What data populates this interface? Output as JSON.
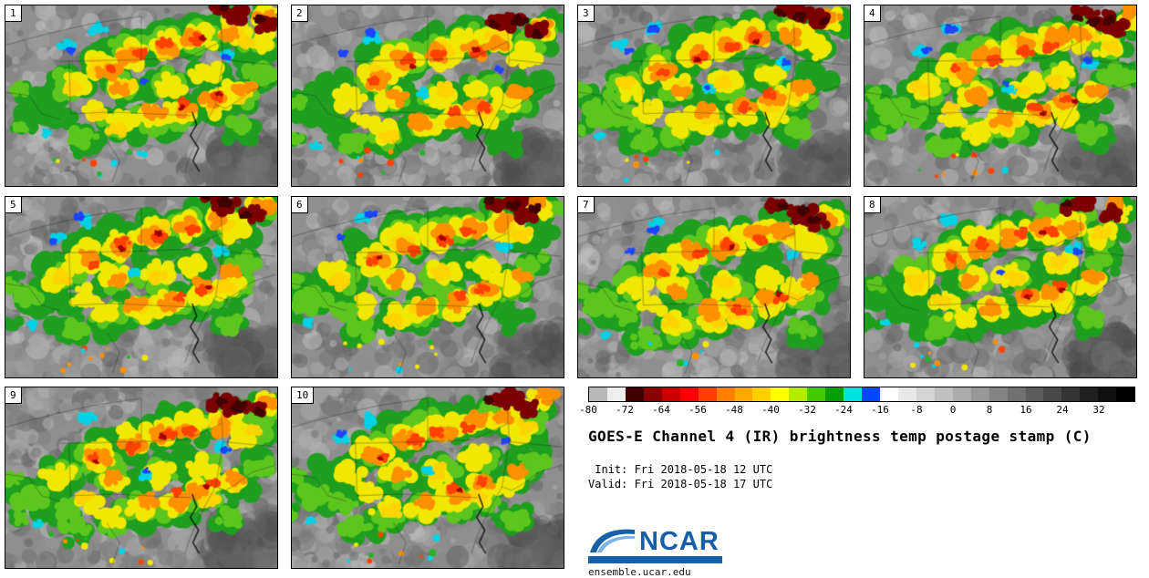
{
  "panels": [
    "1",
    "2",
    "3",
    "4",
    "5",
    "6",
    "7",
    "8",
    "9",
    "10"
  ],
  "legend": {
    "title": "GOES-E Channel 4 (IR) brightness temp postage stamp (C)",
    "init_line": " Init: Fri 2018-05-18 12 UTC",
    "valid_line": "Valid: Fri 2018-05-18 17 UTC",
    "logo_text": "NCAR",
    "url": "ensemble.ucar.edu"
  },
  "colorbar": {
    "unit": "C",
    "ticks": [
      "-80",
      "-72",
      "-64",
      "-56",
      "-48",
      "-40",
      "-32",
      "-24",
      "-16",
      "-8",
      "0",
      "8",
      "16",
      "24",
      "32"
    ],
    "colors": [
      "#b8b8b8",
      "#eeeeee",
      "#3f0000",
      "#8b0000",
      "#cd0000",
      "#ff0000",
      "#ff4000",
      "#ff8000",
      "#ffa800",
      "#ffd000",
      "#ffff00",
      "#b4ec00",
      "#46c800",
      "#00a000",
      "#00e0e0",
      "#0048ff",
      "#ffffff",
      "#e8e8e8",
      "#d4d4d4",
      "#c0c0c0",
      "#acacac",
      "#989898",
      "#848484",
      "#707070",
      "#5c5c5c",
      "#484848",
      "#343434",
      "#202020",
      "#101010",
      "#000000"
    ]
  },
  "accent_colors": {
    "ncar_blue": "#1760a8",
    "panel_border": "#000000"
  },
  "chart_data": {
    "type": "heatmap",
    "subtype": "ensemble postage-stamp multipanel (10 members)",
    "title": "GOES-E Channel 4 (IR) brightness temp postage stamp (C)",
    "field": "GOES-E Channel 4 (IR) brightness temperature",
    "units": "C",
    "panels": [
      "1",
      "2",
      "3",
      "4",
      "5",
      "6",
      "7",
      "8",
      "9",
      "10"
    ],
    "init": "Fri 2018-05-18 12 UTC",
    "valid": "Fri 2018-05-18 17 UTC",
    "colorbar_ticks": [
      -80,
      -72,
      -64,
      -56,
      -48,
      -40,
      -32,
      -24,
      -16,
      -8,
      0,
      8,
      16,
      24,
      32
    ],
    "colorbar_range": [
      -80,
      40
    ],
    "legend_position": "bottom-right",
    "source": "ensemble.ucar.edu"
  }
}
